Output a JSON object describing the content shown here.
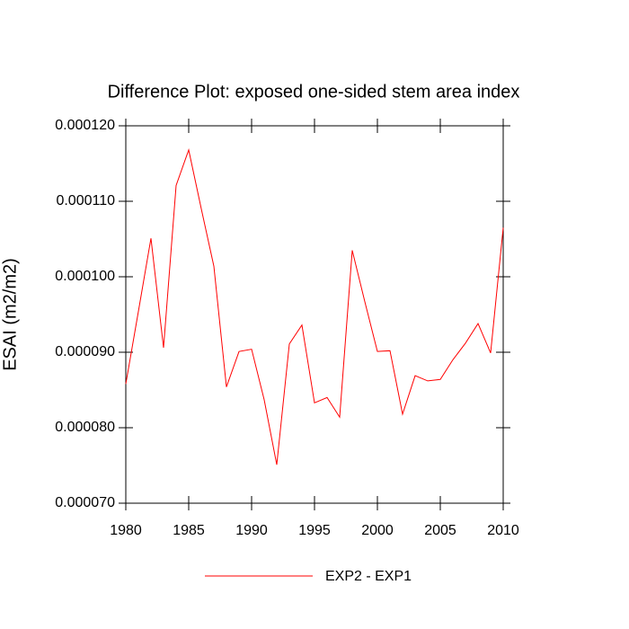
{
  "chart_data": {
    "type": "line",
    "title": "Difference Plot: exposed one-sided stem area index",
    "y_label": "ESAI  (m2/m2)",
    "x": [
      1980,
      1981,
      1982,
      1983,
      1984,
      1985,
      1986,
      1987,
      1988,
      1989,
      1990,
      1991,
      1992,
      1993,
      1994,
      1995,
      1996,
      1997,
      1998,
      1999,
      2000,
      2001,
      2002,
      2003,
      2004,
      2005,
      2006,
      2007,
      2008,
      2009,
      2010
    ],
    "series": [
      {
        "name": "EXP2 - EXP1",
        "color": "#ff0000",
        "values": [
          8.58e-05,
          9.54e-05,
          0.0001051,
          9.06e-05,
          0.0001121,
          0.0001168,
          0.000109,
          0.0001014,
          8.54e-05,
          9.01e-05,
          9.04e-05,
          8.37e-05,
          7.51e-05,
          9.11e-05,
          9.36e-05,
          8.33e-05,
          8.4e-05,
          8.14e-05,
          0.0001035,
          9.67e-05,
          9.01e-05,
          9.02e-05,
          8.18e-05,
          8.69e-05,
          8.62e-05,
          8.64e-05,
          8.9e-05,
          9.12e-05,
          9.38e-05,
          8.99e-05,
          0.0001065
        ]
      }
    ],
    "xlim": [
      1980,
      2010
    ],
    "xticks": [
      1980,
      1985,
      1990,
      1995,
      2000,
      2005,
      2010
    ],
    "ylim": [
      7e-05,
      0.00012
    ],
    "yticks": [
      {
        "value": 7e-05,
        "label": "0.000070"
      },
      {
        "value": 8e-05,
        "label": "0.000080"
      },
      {
        "value": 9e-05,
        "label": "0.000090"
      },
      {
        "value": 0.0001,
        "label": "0.000100"
      },
      {
        "value": 0.00011,
        "label": "0.000110"
      },
      {
        "value": 0.00012,
        "label": "0.000120"
      }
    ]
  }
}
